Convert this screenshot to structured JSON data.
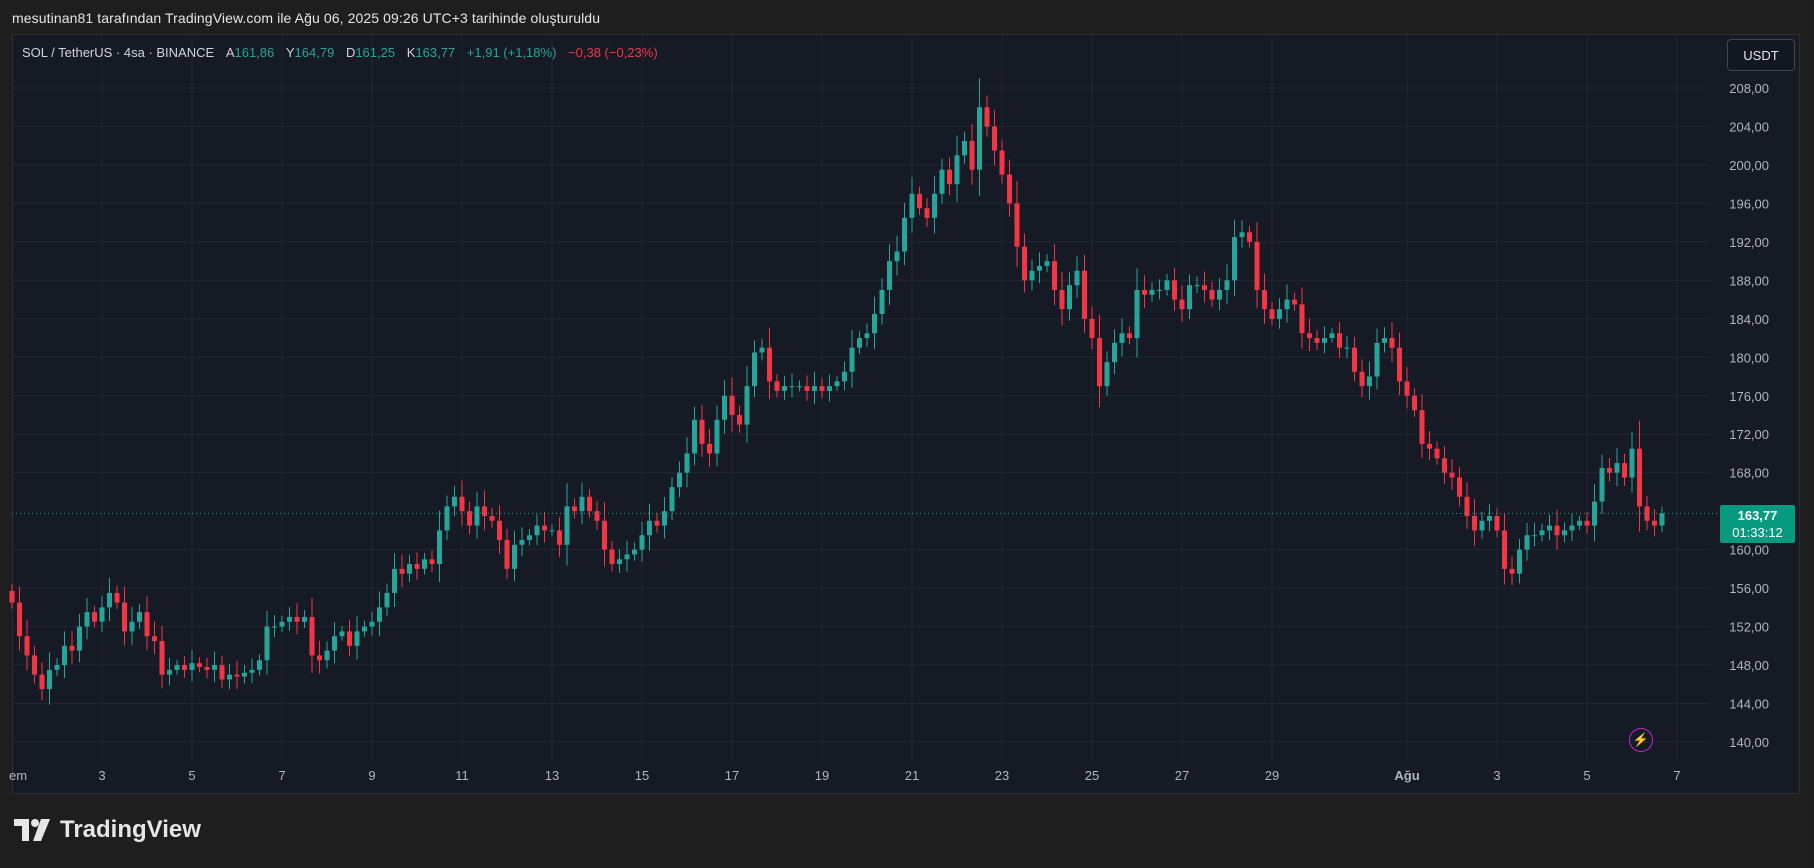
{
  "caption": "mesutinan81 tarafından TradingView.com ile Ağu 06, 2025 09:26 UTC+3 tarihinde oluşturuldu",
  "legend": {
    "symbol": "SOL / TetherUS · 4sa · BINANCE",
    "o_label": "A",
    "o_value": "161,86",
    "h_label": "Y",
    "h_value": "164,79",
    "l_label": "D",
    "l_value": "161,25",
    "c_label": "K",
    "c_value": "163,77",
    "change": "+1,91 (+1,18%)",
    "change2": "−0,38 (−0,23%)"
  },
  "currency_button": "USDT",
  "price_tag": {
    "price": "163,77",
    "countdown": "01:33:12"
  },
  "brand": {
    "name": "TradingView"
  },
  "colors": {
    "up": "#26a69a",
    "down": "#f23645",
    "background": "#161a25",
    "grid": "#232734"
  },
  "chart_data": {
    "type": "candlestick",
    "symbol": "SOL / TetherUS",
    "interval": "4sa",
    "exchange": "BINANCE",
    "ylim": [
      138,
      210
    ],
    "y_ticks": [
      {
        "v": 208,
        "label": "208,00"
      },
      {
        "v": 204,
        "label": "204,00"
      },
      {
        "v": 200,
        "label": "200,00"
      },
      {
        "v": 196,
        "label": "196,00"
      },
      {
        "v": 192,
        "label": "192,00"
      },
      {
        "v": 188,
        "label": "188,00"
      },
      {
        "v": 184,
        "label": "184,00"
      },
      {
        "v": 180,
        "label": "180,00"
      },
      {
        "v": 176,
        "label": "176,00"
      },
      {
        "v": 172,
        "label": "172,00"
      },
      {
        "v": 168,
        "label": "168,00"
      },
      {
        "v": 160,
        "label": "160,00"
      },
      {
        "v": 156,
        "label": "156,00"
      },
      {
        "v": 152,
        "label": "152,00"
      },
      {
        "v": 148,
        "label": "148,00"
      },
      {
        "v": 144,
        "label": "144,00"
      },
      {
        "v": 140,
        "label": "140,00"
      }
    ],
    "x_ticks": [
      {
        "i": 0,
        "label": "em"
      },
      {
        "i": 12,
        "label": "3"
      },
      {
        "i": 24,
        "label": "5"
      },
      {
        "i": 36,
        "label": "7"
      },
      {
        "i": 48,
        "label": "9"
      },
      {
        "i": 60,
        "label": "11"
      },
      {
        "i": 72,
        "label": "13"
      },
      {
        "i": 84,
        "label": "15"
      },
      {
        "i": 96,
        "label": "17"
      },
      {
        "i": 108,
        "label": "19"
      },
      {
        "i": 120,
        "label": "21"
      },
      {
        "i": 132,
        "label": "23"
      },
      {
        "i": 144,
        "label": "25"
      },
      {
        "i": 156,
        "label": "27"
      },
      {
        "i": 168,
        "label": "29"
      },
      {
        "i": 186,
        "label": "Ağu"
      },
      {
        "i": 198,
        "label": "3"
      },
      {
        "i": 210,
        "label": "5"
      },
      {
        "i": 222,
        "label": "7"
      }
    ],
    "last_price": 163.77,
    "closes": [
      154.5,
      151.0,
      149.0,
      147.0,
      145.5,
      147.5,
      148.0,
      150.0,
      149.5,
      152.0,
      153.5,
      152.5,
      154.0,
      155.5,
      154.5,
      151.5,
      152.5,
      153.5,
      151.0,
      150.5,
      147.0,
      147.5,
      148.0,
      147.5,
      148.2,
      147.8,
      147.5,
      148.0,
      146.5,
      147.0,
      146.8,
      147.2,
      147.5,
      148.5,
      152.0,
      152.0,
      152.5,
      153.0,
      152.5,
      153.0,
      149.0,
      148.5,
      149.5,
      151.0,
      151.5,
      150.0,
      151.5,
      152.0,
      152.5,
      154.0,
      155.5,
      158.0,
      157.5,
      158.5,
      158.0,
      159.0,
      158.5,
      162.0,
      164.5,
      165.5,
      164.0,
      162.5,
      164.5,
      163.5,
      163.0,
      161.0,
      158.0,
      160.5,
      161.0,
      161.5,
      162.5,
      162.0,
      162.0,
      160.5,
      164.5,
      164.0,
      165.5,
      164.0,
      163.0,
      160.0,
      158.5,
      159.0,
      159.5,
      160.0,
      161.5,
      163.0,
      162.5,
      164.0,
      166.5,
      168.0,
      170.0,
      173.5,
      171.0,
      170.0,
      173.5,
      176.0,
      174.0,
      173.0,
      177.0,
      180.5,
      181.0,
      177.5,
      176.5,
      177.0,
      177.0,
      177.0,
      176.5,
      177.0,
      176.5,
      177.0,
      177.5,
      178.5,
      181.0,
      182.0,
      182.5,
      184.5,
      187.0,
      190.0,
      191.0,
      194.5,
      197.0,
      195.5,
      194.5,
      197.0,
      199.5,
      198.0,
      201.0,
      202.5,
      199.5,
      206.0,
      204.0,
      201.5,
      199.0,
      196.0,
      191.5,
      188.0,
      189.0,
      189.5,
      190.0,
      187.0,
      185.0,
      187.5,
      189.0,
      184.0,
      182.0,
      177.0,
      179.5,
      181.5,
      182.5,
      182.0,
      187.0,
      186.5,
      187.0,
      187.0,
      188.0,
      186.0,
      185.0,
      187.5,
      187.5,
      187.0,
      186.0,
      187.0,
      188.0,
      192.5,
      193.0,
      192.0,
      187.0,
      185.0,
      184.0,
      185.0,
      186.0,
      185.5,
      182.5,
      182.0,
      181.5,
      182.0,
      182.5,
      181.0,
      181.0,
      178.5,
      177.0,
      178.0,
      181.5,
      182.0,
      181.0,
      177.5,
      176.0,
      174.5,
      171.0,
      170.5,
      169.5,
      168.0,
      167.5,
      165.5,
      163.5,
      162.0,
      163.0,
      163.5,
      162.0,
      158.0,
      157.5,
      160.0,
      161.5,
      161.5,
      162.0,
      162.5,
      161.5,
      162.0,
      162.5,
      163.0,
      162.5,
      165.0,
      168.5,
      168.0,
      169.0,
      167.5,
      170.5,
      164.5,
      163.0,
      162.5,
      163.77
    ]
  }
}
